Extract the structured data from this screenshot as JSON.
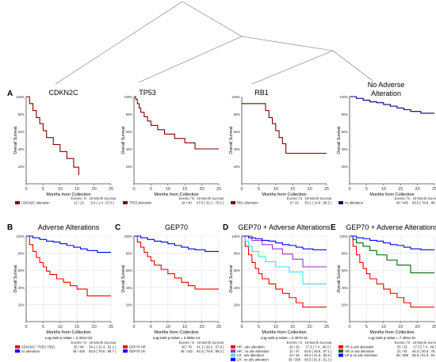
{
  "tree": {
    "labels": [
      "CDKN2C",
      "TP53",
      "RB1",
      "No Adverse Alteration"
    ]
  },
  "chart_data": [
    {
      "type": "line",
      "panel_letter": "A",
      "title": "CDKN2C",
      "xlabel": "Months from Collection",
      "ylabel": "Overall Survival",
      "xlim": [
        0,
        25
      ],
      "ylim": [
        0,
        100
      ],
      "xticks": [
        "0",
        "5",
        "10",
        "15",
        "20",
        "25"
      ],
      "yticks": [
        "20%",
        "40%",
        "60%",
        "80%",
        "100%"
      ],
      "grid": false,
      "pvalue": "",
      "table_headers": [
        "Events / N",
        "18-Month Survival"
      ],
      "series": [
        {
          "name": "CDKN2C alteration",
          "color": "#800000",
          "events": "11 / 13",
          "survival": "9.0 ( 1.4 , 57.6 )",
          "x": [
            0,
            1,
            1,
            2,
            2,
            3,
            3,
            4,
            4,
            5,
            5,
            6,
            6,
            8,
            8,
            10,
            10,
            12,
            12,
            14,
            14,
            15.5,
            15.5
          ],
          "y": [
            100,
            100,
            92,
            92,
            84,
            84,
            76,
            76,
            69,
            69,
            61,
            61,
            53,
            53,
            45,
            45,
            37,
            37,
            29,
            29,
            19,
            19,
            10
          ]
        }
      ]
    },
    {
      "type": "line",
      "panel_letter": "",
      "title": "TP53",
      "xlabel": "Months from Collection",
      "ylabel": "Overall Survival",
      "xlim": [
        0,
        25
      ],
      "ylim": [
        0,
        100
      ],
      "xticks": [
        "0",
        "5",
        "10",
        "15",
        "20",
        "25"
      ],
      "yticks": [
        "20%",
        "40%",
        "60%",
        "80%",
        "100%"
      ],
      "grid": false,
      "pvalue": "",
      "table_headers": [
        "Events / N",
        "18-Month Survival"
      ],
      "series": [
        {
          "name": "TP53 alteration",
          "color": "#800000",
          "events": "18 / 40",
          "survival": "47.5 ( 32.1 , 70.2 )",
          "x": [
            0,
            0.5,
            0.5,
            1,
            1,
            1.5,
            1.5,
            2,
            2,
            3,
            3,
            4,
            4,
            5,
            5,
            7,
            7,
            9,
            9,
            12,
            12,
            15,
            15,
            18,
            18,
            25
          ],
          "y": [
            100,
            100,
            97,
            97,
            92,
            92,
            87,
            87,
            82,
            82,
            77,
            77,
            72,
            72,
            67,
            67,
            62,
            62,
            57,
            57,
            52,
            52,
            47,
            47,
            40,
            40
          ]
        }
      ]
    },
    {
      "type": "line",
      "panel_letter": "",
      "title": "RB1",
      "xlabel": "Months from Collection",
      "ylabel": "Overall Survival",
      "xlim": [
        0,
        25
      ],
      "ylim": [
        0,
        100
      ],
      "xticks": [
        "0",
        "5",
        "10",
        "15",
        "20",
        "25"
      ],
      "yticks": [
        "20%",
        "40%",
        "60%",
        "80%",
        "100%"
      ],
      "grid": false,
      "pvalue": "",
      "table_headers": [
        "Events / N",
        "18-Month Survival"
      ],
      "series": [
        {
          "name": "RB1 alteration",
          "color": "#800000",
          "events": "8 / 13",
          "survival": "35.2 ( 14.9 , 86.5 )",
          "x": [
            0,
            7,
            7,
            8,
            8,
            9,
            9,
            10,
            10,
            11,
            11,
            12,
            12,
            13,
            13,
            25
          ],
          "y": [
            92,
            92,
            84,
            84,
            76,
            76,
            69,
            69,
            61,
            61,
            53,
            53,
            46,
            46,
            35,
            35
          ]
        }
      ]
    },
    {
      "type": "line",
      "panel_letter": "",
      "title": "No Adverse Alteration",
      "xlabel": "Months from Collection",
      "ylabel": "Overall Survival",
      "xlim": [
        0,
        25
      ],
      "ylim": [
        0,
        100
      ],
      "xticks": [
        "0",
        "5",
        "10",
        "15",
        "20",
        "25"
      ],
      "yticks": [
        "20%",
        "40%",
        "60%",
        "80%",
        "100%"
      ],
      "grid": false,
      "pvalue": "",
      "table_headers": [
        "Events / N",
        "18-Month Survival"
      ],
      "series": [
        {
          "name": "no alteration",
          "color": "#000080",
          "events": "46 / 445",
          "survival": "83.5 ( 78.8 , 88.7 )",
          "x": [
            0,
            2,
            2,
            4,
            4,
            6,
            6,
            8,
            8,
            10,
            10,
            12,
            12,
            14,
            14,
            16,
            16,
            18,
            18,
            21,
            21,
            25
          ],
          "y": [
            100,
            100,
            98,
            98,
            96,
            96,
            94,
            94,
            93,
            93,
            91,
            91,
            89,
            89,
            87,
            87,
            85,
            85,
            83,
            83,
            81,
            81
          ]
        }
      ]
    },
    {
      "type": "line",
      "panel_letter": "B",
      "title": "Adverse Alterations",
      "xlabel": "Months from Collection",
      "ylabel": "Overall Survival",
      "xlim": [
        0,
        25
      ],
      "ylim": [
        0,
        100
      ],
      "xticks": [
        "0",
        "5",
        "10",
        "15",
        "20",
        "25"
      ],
      "yticks": [
        "20%",
        "40%",
        "60%",
        "80%",
        "100%"
      ],
      "grid": true,
      "pvalue": "Log-rank p-value = 2.331e-22",
      "table_headers": [
        "Events / N",
        "18-Month Survival"
      ],
      "series": [
        {
          "name": "CDKN2C / TP53 / RB1",
          "color": "#ff0000",
          "events": "35 / 66",
          "survival": "34.1 ( 22.4 , 52.1 )",
          "x": [
            0,
            1,
            1,
            2,
            2,
            3,
            3,
            4,
            4,
            5,
            5,
            6,
            6,
            7,
            7,
            9,
            9,
            11,
            11,
            13,
            13,
            15,
            15,
            18,
            18,
            25
          ],
          "y": [
            100,
            100,
            90,
            90,
            82,
            82,
            75,
            75,
            69,
            69,
            64,
            64,
            59,
            59,
            55,
            55,
            50,
            50,
            46,
            46,
            42,
            42,
            38,
            38,
            30,
            30
          ]
        },
        {
          "name": "no alteration",
          "color": "#0000ff",
          "events": "46 / 445",
          "survival": "83.5 ( 78.8 , 88.7 )",
          "x": [
            0,
            2,
            2,
            4,
            4,
            6,
            6,
            8,
            8,
            10,
            10,
            12,
            12,
            14,
            14,
            16,
            16,
            18,
            18,
            21,
            21,
            25
          ],
          "y": [
            100,
            100,
            98,
            98,
            96,
            96,
            94,
            94,
            93,
            93,
            91,
            91,
            89,
            89,
            87,
            87,
            85,
            85,
            83,
            83,
            81,
            81
          ]
        }
      ]
    },
    {
      "type": "line",
      "panel_letter": "C",
      "title": "GEP70",
      "xlabel": "Months from Collection",
      "ylabel": "Overall Survival",
      "xlim": [
        0,
        25
      ],
      "ylim": [
        0,
        100
      ],
      "xticks": [
        "0",
        "5",
        "10",
        "15",
        "20",
        "25"
      ],
      "yticks": [
        "20%",
        "40%",
        "60%",
        "80%",
        "100%"
      ],
      "grid": true,
      "pvalue": "Log-rank p-value = 3.386e-14",
      "table_headers": [
        "Events / N",
        "18-Month Survival"
      ],
      "series": [
        {
          "name": "GEP70 HR",
          "color": "#ff0000",
          "events": "36 / 79",
          "survival": "41.1 ( 29.2 , 57.9 )",
          "x": [
            0,
            1,
            1,
            2,
            2,
            3,
            3,
            4,
            4,
            5,
            5,
            6,
            6,
            8,
            8,
            10,
            10,
            12,
            12,
            14,
            14,
            16,
            16,
            18,
            18,
            25
          ],
          "y": [
            100,
            100,
            93,
            93,
            87,
            87,
            81,
            81,
            76,
            76,
            71,
            71,
            66,
            66,
            61,
            61,
            56,
            56,
            51,
            51,
            46,
            46,
            42,
            42,
            38,
            38
          ]
        },
        {
          "name": "GEP70 LR",
          "color": "#0000ff",
          "events": "45 / 432",
          "survival": "84.3 ( 79.8 , 89.2 )",
          "x": [
            0,
            2,
            2,
            4,
            4,
            6,
            6,
            8,
            8,
            10,
            10,
            12,
            12,
            14,
            14,
            16,
            16,
            18,
            18,
            21,
            21,
            25
          ],
          "y": [
            100,
            100,
            98,
            98,
            96,
            96,
            94,
            94,
            93,
            93,
            91,
            91,
            89,
            89,
            87,
            87,
            85,
            85,
            84,
            84,
            82,
            82
          ]
        }
      ]
    },
    {
      "type": "line",
      "panel_letter": "D",
      "title": "GEP70 + Adverse Alterations",
      "xlabel": "Months from Collection",
      "ylabel": "Overall Survival",
      "xlim": [
        0,
        25
      ],
      "ylim": [
        0,
        100
      ],
      "xticks": [
        "0",
        "5",
        "10",
        "15",
        "20",
        "25"
      ],
      "yticks": [
        "20%",
        "40%",
        "60%",
        "80%",
        "100%"
      ],
      "grid": true,
      "pvalue": "Log-rank p-value = 2.497e-31",
      "table_headers": [
        "Events / N",
        "18-Month Survival"
      ],
      "series": [
        {
          "name": "HR ; adv alteration",
          "color": "#ff0000",
          "events": "25 / 32",
          "survival": "17.3 ( 7.4 , 40.3 )",
          "x": [
            0,
            1,
            1,
            2,
            2,
            3,
            3,
            4,
            4,
            5,
            5,
            6,
            6,
            8,
            8,
            10,
            10,
            12,
            12,
            14,
            14,
            16,
            16,
            18,
            18,
            25
          ],
          "y": [
            100,
            100,
            88,
            88,
            78,
            78,
            69,
            69,
            62,
            62,
            56,
            56,
            50,
            50,
            44,
            44,
            38,
            38,
            33,
            33,
            28,
            28,
            22,
            22,
            17,
            17
          ]
        },
        {
          "name": "HR ; no adv alteration",
          "color": "#9933cc",
          "events": "11 / 47",
          "survival": "63.5 ( 48.8 , 87.1 )",
          "x": [
            0,
            3,
            3,
            6,
            6,
            9,
            9,
            12,
            12,
            15,
            15,
            18,
            18,
            25
          ],
          "y": [
            100,
            100,
            95,
            95,
            90,
            90,
            85,
            85,
            79,
            79,
            73,
            73,
            64,
            64
          ]
        },
        {
          "name": "LR ; adv alteration",
          "color": "#33e5ff",
          "events": "10 / 34",
          "survival": "59.3 ( 41.9 , 83.8 )",
          "x": [
            0,
            1,
            1,
            2,
            2,
            3,
            3,
            5,
            5,
            7,
            7,
            10,
            10,
            14,
            14,
            18,
            18,
            25
          ],
          "y": [
            100,
            100,
            94,
            94,
            88,
            88,
            82,
            82,
            76,
            76,
            70,
            70,
            64,
            64,
            58,
            58,
            44,
            44
          ]
        },
        {
          "name": "LR ; no adv alteration",
          "color": "#0000ff",
          "events": "35 / 398",
          "survival": "86.5 ( 81.9 , 91.3 )",
          "x": [
            0,
            2,
            2,
            4,
            4,
            6,
            6,
            8,
            8,
            10,
            10,
            12,
            12,
            14,
            14,
            16,
            16,
            18,
            18,
            21,
            21,
            25
          ],
          "y": [
            100,
            100,
            98,
            98,
            97,
            97,
            95,
            95,
            94,
            94,
            92,
            92,
            90,
            90,
            89,
            89,
            87,
            87,
            85,
            85,
            84,
            84
          ]
        }
      ]
    },
    {
      "type": "line",
      "panel_letter": "E",
      "title": "GEP70 + Adverse Alterations",
      "xlabel": "Months from Collection",
      "ylabel": "Overall Survival",
      "xlim": [
        0,
        25
      ],
      "ylim": [
        0,
        100
      ],
      "xticks": [
        "0",
        "5",
        "10",
        "15",
        "20",
        "25"
      ],
      "yticks": [
        "20%",
        "40%",
        "60%",
        "80%",
        "100%"
      ],
      "grid": true,
      "pvalue": "Log-rank p-value = 7.491e-31",
      "table_headers": [
        "Events / N",
        "18-Month Survival"
      ],
      "series": [
        {
          "name": "HR & adv alteration",
          "color": "#ff0000",
          "events": "25 / 32",
          "survival": "17.3 ( 7.4 , 40.3 )",
          "x": [
            0,
            1,
            1,
            2,
            2,
            3,
            3,
            4,
            4,
            5,
            5,
            6,
            6,
            8,
            8,
            10,
            10,
            12,
            12,
            14,
            14,
            16,
            16,
            18,
            18,
            25
          ],
          "y": [
            100,
            100,
            88,
            88,
            78,
            78,
            69,
            69,
            62,
            62,
            56,
            56,
            50,
            50,
            44,
            44,
            38,
            38,
            33,
            33,
            28,
            28,
            22,
            22,
            17,
            17
          ]
        },
        {
          "name": "HR or adv alteration",
          "color": "#006600",
          "events": "21 / 81",
          "survival": "60.3 ( 46.5 , 78.1 )",
          "x": [
            0,
            1,
            1,
            2,
            2,
            4,
            4,
            6,
            6,
            8,
            8,
            11,
            11,
            14,
            14,
            18,
            18,
            25
          ],
          "y": [
            100,
            100,
            96,
            96,
            92,
            92,
            88,
            88,
            83,
            83,
            78,
            78,
            72,
            72,
            66,
            66,
            57,
            57
          ]
        },
        {
          "name": "LR & no adv alteration",
          "color": "#0000ff",
          "events": "35 / 398",
          "survival": "86.5 ( 81.9 , 91.3 )",
          "x": [
            0,
            2,
            2,
            4,
            4,
            6,
            6,
            8,
            8,
            10,
            10,
            12,
            12,
            14,
            14,
            16,
            16,
            18,
            18,
            21,
            21,
            25
          ],
          "y": [
            100,
            100,
            98,
            98,
            97,
            97,
            95,
            95,
            94,
            94,
            92,
            92,
            90,
            90,
            89,
            89,
            87,
            87,
            85,
            85,
            84,
            84
          ]
        }
      ]
    }
  ]
}
